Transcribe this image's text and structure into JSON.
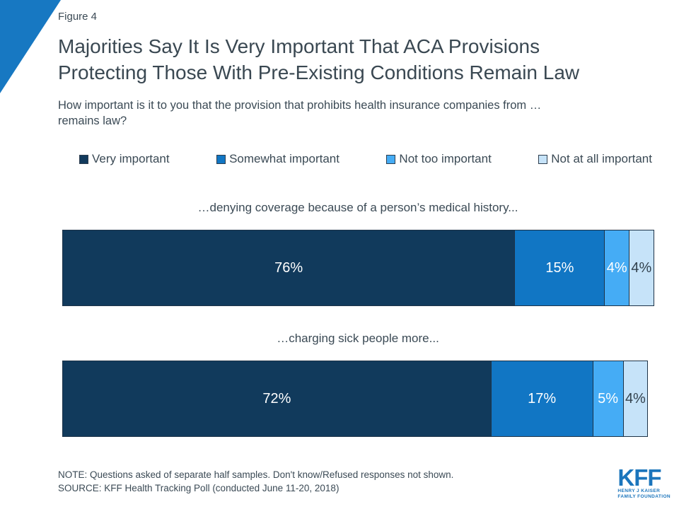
{
  "figure_label": "Figure 4",
  "title": {
    "lines": [
      "Majorities Say It Is Very Important That ACA Provisions",
      "Protecting Those With Pre-Existing Conditions Remain Law"
    ]
  },
  "subtitle": {
    "lines": [
      "How important is it to you that the provision that prohibits health insurance companies from …",
      "remains law?"
    ]
  },
  "chart_data": {
    "type": "bar",
    "orientation": "horizontal_stacked",
    "legend_position": "top",
    "xlim": [
      0,
      100
    ],
    "value_suffix": "%",
    "categories": [
      "…denying coverage because of a person’s medical history...",
      "…charging sick people more..."
    ],
    "series": [
      {
        "name": "Very important",
        "color": "#113A5C",
        "label_color": "#FFFFFF",
        "values": [
          76,
          72
        ]
      },
      {
        "name": "Somewhat important",
        "color": "#1176C4",
        "label_color": "#FFFFFF",
        "values": [
          15,
          17
        ]
      },
      {
        "name": "Not too important",
        "color": "#45ACF5",
        "label_color": "#FFFFFF",
        "values": [
          4,
          5
        ]
      },
      {
        "name": "Not at all important",
        "color": "#C6E3F9",
        "label_color": "#33424E",
        "values": [
          4,
          4
        ]
      }
    ],
    "title": "Majorities Say It Is Very Important That ACA Provisions Protecting Those With Pre-Existing Conditions Remain Law"
  },
  "note": "NOTE: Questions asked of separate half samples. Don't know/Refused responses not shown.",
  "source": "SOURCE: KFF Health Tracking Poll (conducted June 11-20, 2018)",
  "logo": {
    "text": "KFF",
    "sub_line1": "HENRY J KAISER",
    "sub_line2": "FAMILY FOUNDATION",
    "color": "#1B75BC"
  },
  "accent_color": "#1778C2"
}
